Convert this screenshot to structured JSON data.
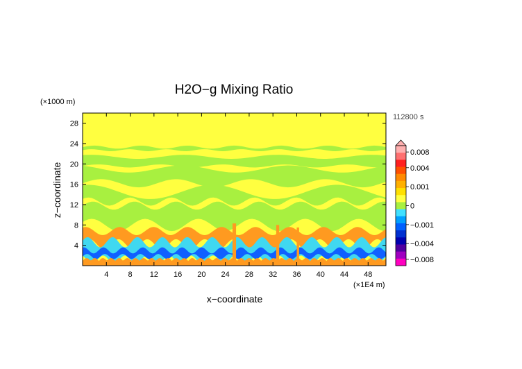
{
  "chart_data": {
    "type": "heatmap",
    "title": "H2O−g Mixing Ratio",
    "xlabel": "x−coordinate",
    "ylabel": "z−coordinate",
    "x_unit": "(×1E4 m)",
    "y_unit": "(×1000 m)",
    "time_label": "112800 s",
    "xlim": [
      0,
      51
    ],
    "ylim": [
      0,
      30
    ],
    "x_ticks": [
      4,
      8,
      12,
      16,
      20,
      24,
      28,
      32,
      36,
      40,
      44,
      48
    ],
    "y_ticks": [
      4,
      8,
      12,
      16,
      20,
      24,
      28
    ],
    "colorbar": {
      "range": [
        -0.01,
        0.01
      ],
      "tick_values": [
        0.008,
        0.004,
        0.001,
        0,
        -0.001,
        -0.004,
        -0.008
      ],
      "tick_labels": [
        "0.008",
        "0.004",
        "0.001",
        "0",
        "−0.001",
        "−0.004",
        "−0.008"
      ],
      "colors_top_to_bottom": [
        "#ffb0b0",
        "#ff7070",
        "#ff2020",
        "#ff5000",
        "#ff8a00",
        "#ffb000",
        "#ffe000",
        "#ffff40",
        "#a8f040",
        "#40e0ff",
        "#00a0ff",
        "#0060ff",
        "#0030d0",
        "#0000b0",
        "#5000a0",
        "#a000c0",
        "#ff00c0"
      ]
    },
    "field_levels": {
      "background_upper": 0,
      "layer_greenish": -0.0005,
      "layer_orange": 0.0012,
      "layer_cyan": -0.0012,
      "layer_blue": -0.003,
      "layer_red": 0.003
    },
    "colors": {
      "yellow": "#ffff40",
      "green": "#a8f040",
      "orange": "#ff9a20",
      "cyan": "#40d8f0",
      "blue": "#1060ff",
      "red": "#ff3020"
    }
  }
}
